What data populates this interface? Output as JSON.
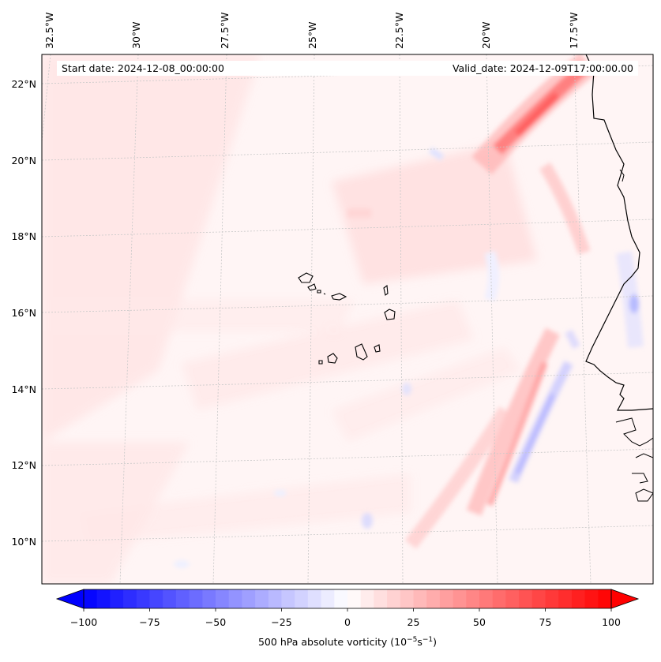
{
  "start_date_text": "Start date: 2024-12-08_00:00:00",
  "valid_date_text": "Valid_date: 2024-12-09T17:00:00.00",
  "lon_labels": [
    "32.5°W",
    "30°W",
    "27.5°W",
    "25°W",
    "22.5°W",
    "20°W",
    "17.5°W"
  ],
  "lat_labels": [
    "22°N",
    "20°N",
    "18°N",
    "16°N",
    "14°N",
    "12°N",
    "10°N"
  ],
  "colorbar": {
    "tick_labels": [
      "−100",
      "−75",
      "−50",
      "−25",
      "0",
      "25",
      "50",
      "75",
      "100"
    ],
    "label_prefix": "500 hPa absolute vorticity (10",
    "label_exp1": "−5",
    "label_mid": "s",
    "label_exp2": "−1",
    "label_suffix": ")",
    "min": -100,
    "max": 100,
    "step": 5,
    "colors": {
      "neg": "#0000ff",
      "zero": "#ffffff",
      "pos": "#ff0000"
    }
  }
}
